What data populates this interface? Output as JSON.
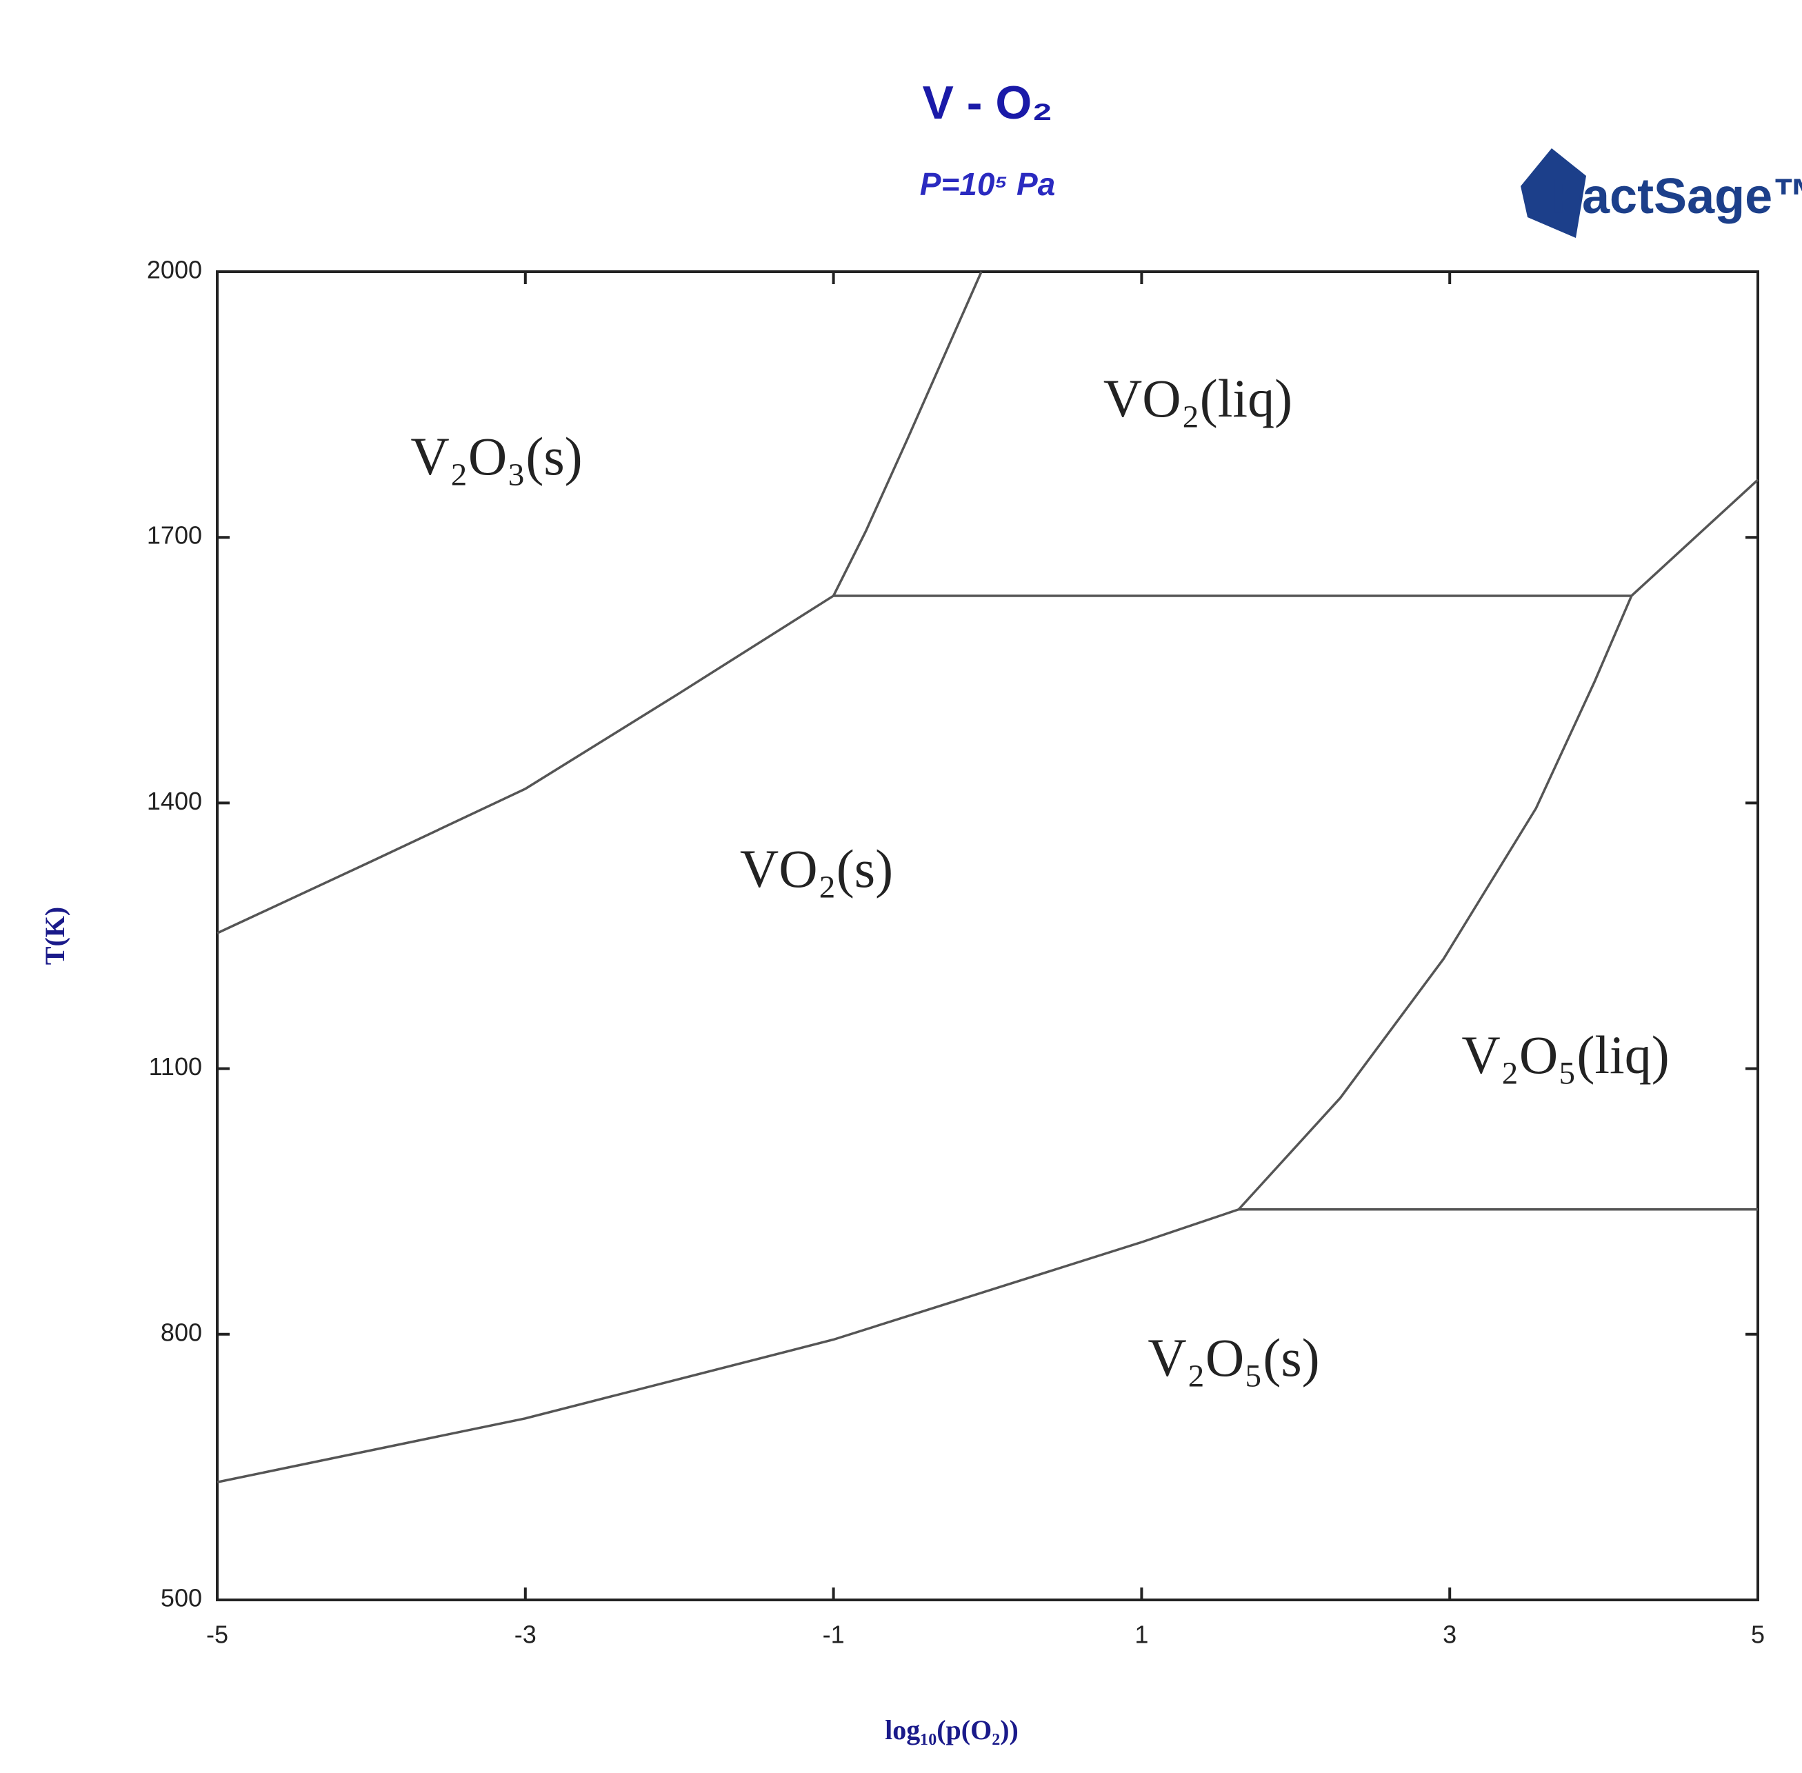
{
  "chart_data": {
    "type": "line",
    "title": "V - O₂",
    "subtitle": "P=10⁵ Pa",
    "logo": "FactSage™",
    "x_label": "log₁₀(p(O₂))",
    "y_label": "T(K)",
    "xlim": [
      -5,
      5
    ],
    "ylim": [
      500,
      2000
    ],
    "xticks": [
      -5,
      -3,
      -1,
      1,
      3,
      5
    ],
    "yticks": [
      500,
      800,
      1100,
      1400,
      1700,
      2000
    ],
    "color": "#555555",
    "series": [
      {
        "x": [
          -5,
          -4,
          -3,
          -2,
          -1
        ],
        "values": [
          1253,
          1334,
          1416,
          1524,
          1634
        ]
      },
      {
        "x": [
          -1,
          -0.79,
          -0.52,
          -0.04
        ],
        "values": [
          1634,
          1707,
          1811,
          2000
        ]
      },
      {
        "x": [
          -1,
          4.18
        ],
        "values": [
          1634,
          1634
        ]
      },
      {
        "x": [
          4.18,
          5
        ],
        "values": [
          1634,
          1765
        ]
      },
      {
        "x": [
          1.63,
          2.29,
          2.96,
          3.56,
          3.94,
          4.18
        ],
        "values": [
          941,
          1067,
          1224,
          1394,
          1537,
          1634
        ]
      },
      {
        "x": [
          1.63,
          5
        ],
        "values": [
          941,
          941
        ]
      },
      {
        "x": [
          -5,
          -3,
          -1,
          1,
          1.63
        ],
        "values": [
          633,
          705,
          794,
          904,
          941
        ]
      }
    ],
    "annotations": [
      "V₂O₃(s)",
      "VO₂(liq)",
      "VO₂(s)",
      "V₂O₅(liq)",
      "V₂O₅(s)"
    ]
  }
}
